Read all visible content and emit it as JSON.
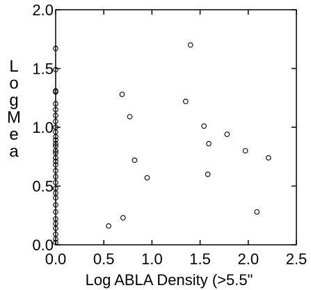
{
  "chart_data": {
    "type": "scatter",
    "title": "",
    "xlabel": "Log ABLA Density (>5.5\"",
    "ylabel": "Log Mea",
    "xlim": [
      0,
      2.5
    ],
    "ylim": [
      0,
      2.0
    ],
    "xticks": [
      "0.0",
      "0.5",
      "1.0",
      "1.5",
      "2.0",
      "2.5"
    ],
    "yticks": [
      "0.0",
      "0.5",
      "1.0",
      "1.5",
      "2.0"
    ],
    "grid": false,
    "marker": "open-circle",
    "series": [
      {
        "points": [
          [
            0.0,
            1.67
          ],
          [
            0.0,
            1.49
          ],
          [
            0.0,
            1.31
          ],
          [
            0.0,
            1.3
          ],
          [
            0.0,
            1.2
          ],
          [
            0.0,
            1.15
          ],
          [
            0.0,
            1.1
          ],
          [
            0.0,
            1.05
          ],
          [
            0.0,
            1.0
          ],
          [
            0.0,
            0.96
          ],
          [
            0.0,
            0.92
          ],
          [
            0.0,
            0.89
          ],
          [
            0.0,
            0.86
          ],
          [
            0.0,
            0.84
          ],
          [
            0.0,
            0.8
          ],
          [
            0.0,
            0.78
          ],
          [
            0.0,
            0.74
          ],
          [
            0.0,
            0.71
          ],
          [
            0.0,
            0.68
          ],
          [
            0.0,
            0.63
          ],
          [
            0.0,
            0.58
          ],
          [
            0.0,
            0.53
          ],
          [
            0.0,
            0.48
          ],
          [
            0.0,
            0.44
          ],
          [
            0.0,
            0.4
          ],
          [
            0.0,
            0.34
          ],
          [
            0.0,
            0.28
          ],
          [
            0.0,
            0.22
          ],
          [
            0.0,
            0.18
          ],
          [
            0.0,
            0.14
          ],
          [
            0.0,
            0.09
          ],
          [
            0.0,
            0.05
          ],
          [
            0.0,
            0.02
          ],
          [
            0.55,
            0.16
          ],
          [
            0.69,
            1.28
          ],
          [
            0.7,
            0.23
          ],
          [
            0.77,
            1.09
          ],
          [
            0.82,
            0.72
          ],
          [
            0.95,
            0.57
          ],
          [
            1.35,
            1.22
          ],
          [
            1.4,
            1.7
          ],
          [
            1.54,
            1.01
          ],
          [
            1.58,
            0.6
          ],
          [
            1.59,
            0.86
          ],
          [
            1.78,
            0.94
          ],
          [
            1.97,
            0.8
          ],
          [
            2.09,
            0.28
          ],
          [
            2.21,
            0.74
          ]
        ]
      }
    ]
  }
}
